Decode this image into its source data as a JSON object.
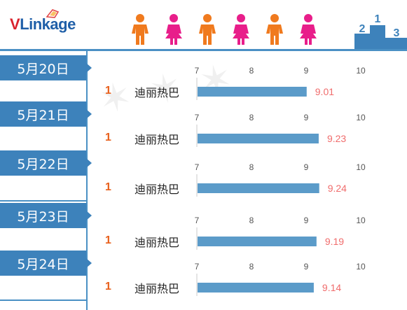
{
  "brand": {
    "v": "V",
    "rest": "Linkage"
  },
  "chart_data": {
    "type": "bar",
    "xlim": [
      7,
      10
    ],
    "ticks": [
      7,
      8,
      9,
      10
    ],
    "colors": {
      "bar": "#5b9bc9",
      "value": "#f06c6c",
      "rank": "#e8601c",
      "tab": "#3d82bb"
    },
    "rows": [
      {
        "date": "5月20日",
        "rank": "1",
        "name": "迪丽热巴",
        "value": 9.01
      },
      {
        "date": "5月21日",
        "rank": "1",
        "name": "迪丽热巴",
        "value": 9.23
      },
      {
        "date": "5月22日",
        "rank": "1",
        "name": "迪丽热巴",
        "value": 9.24
      },
      {
        "date": "5月23日",
        "rank": "1",
        "name": "迪丽热巴",
        "value": 9.19
      },
      {
        "date": "5月24日",
        "rank": "1",
        "name": "迪丽热巴",
        "value": 9.14
      }
    ]
  },
  "icons": {
    "people": [
      "man-icon",
      "woman-icon",
      "man-icon",
      "woman-icon",
      "man-icon",
      "woman-icon"
    ],
    "podium": "podium-icon"
  }
}
